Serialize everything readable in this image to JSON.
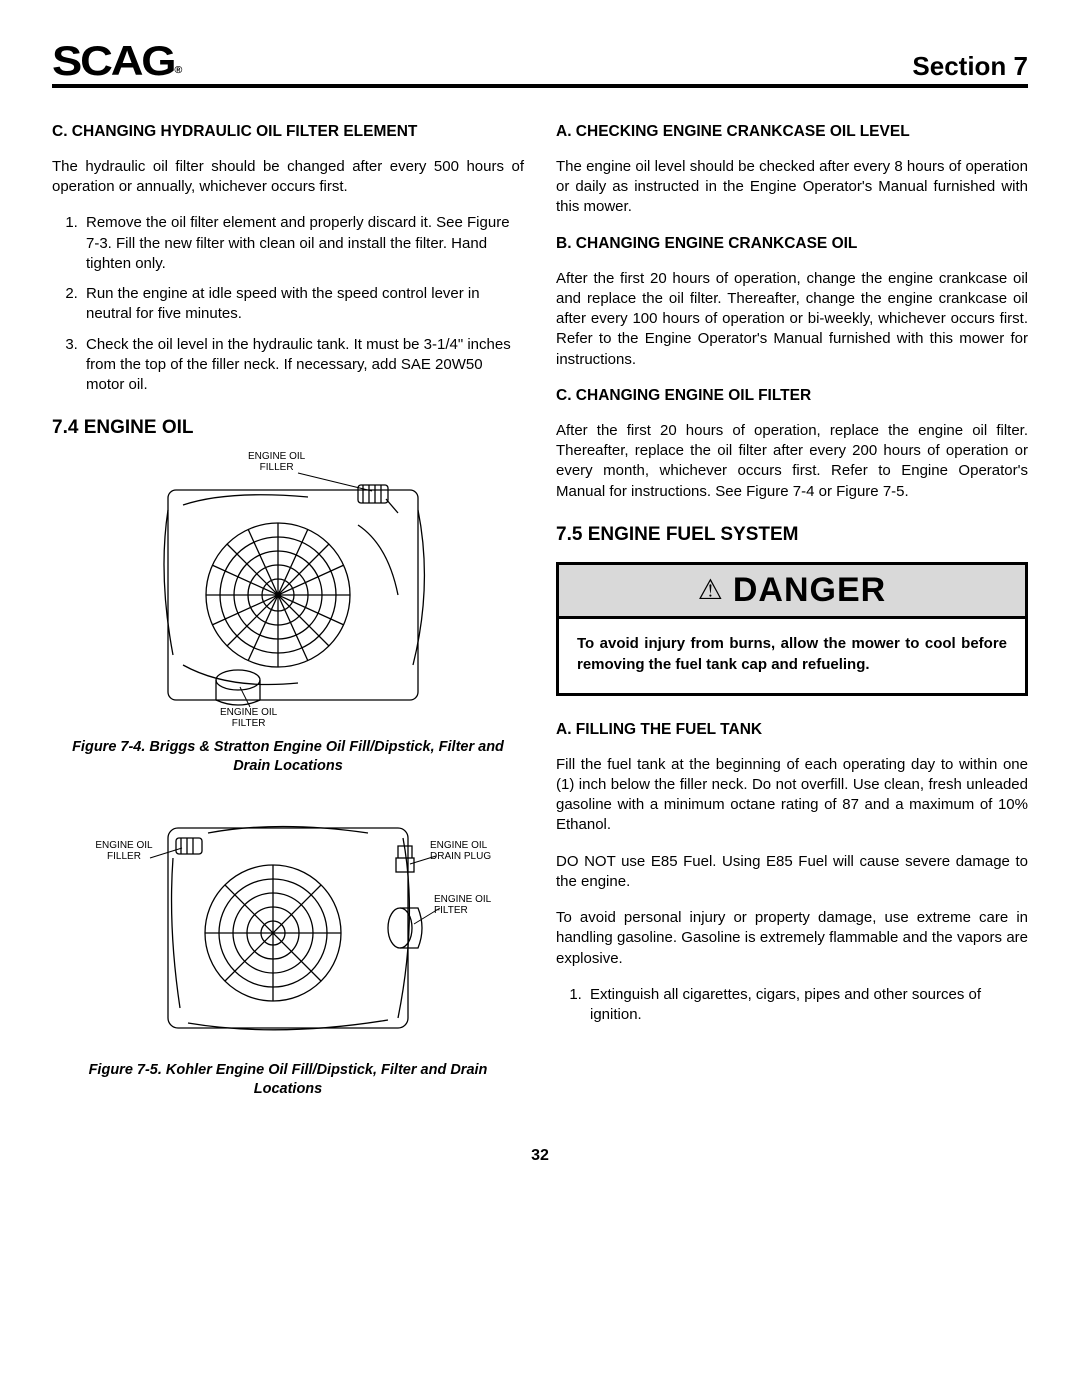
{
  "header": {
    "brand": "SCAG",
    "section": "Section 7"
  },
  "left": {
    "c_heading": "C. CHANGING HYDRAULIC OIL FILTER ELEMENT",
    "c_intro": "The hydraulic oil filter should be changed after every 500 hours of operation or annually, whichever occurs first.",
    "c_steps": [
      "Remove the oil filter element and properly discard it. See Figure 7-3. Fill the new filter with clean oil and install the filter. Hand tighten only.",
      "Run the engine at idle speed with the speed control lever in neutral for five minutes.",
      "Check the oil level in the hydraulic tank. It must be 3-1/4\" inches from the top of the filler neck. If necessary, add SAE 20W50 motor oil."
    ],
    "sec74": "7.4  ENGINE OIL",
    "fig74": {
      "label_filler": "ENGINE OIL\nFILLER",
      "label_filter": "ENGINE OIL\nFILTER",
      "caption": "Figure 7-4. Briggs & Stratton Engine Oil Fill/Dipstick, Filter and Drain Locations"
    },
    "fig75": {
      "label_filler": "ENGINE OIL\nFILLER",
      "label_drain": "ENGINE OIL\nDRAIN PLUG",
      "label_filter": "ENGINE OIL\nFILTER",
      "caption": "Figure 7-5. Kohler Engine Oil Fill/Dipstick, Filter and Drain Locations"
    }
  },
  "right": {
    "a_heading": "A. CHECKING ENGINE CRANKCASE OIL LEVEL",
    "a_body": "The engine oil level should be checked after every 8 hours of operation or daily as instructed in the Engine Operator's Manual furnished with this mower.",
    "b_heading": "B. CHANGING ENGINE CRANKCASE OIL",
    "b_body": "After the first 20 hours of operation, change the engine crankcase oil and replace the oil filter. Thereafter, change the engine crankcase oil after every 100 hours of operation or bi-weekly, whichever occurs first. Refer to the Engine Operator's Manual furnished with this mower for instructions.",
    "c_heading": "C. CHANGING ENGINE OIL FILTER",
    "c_body": "After the first 20 hours of operation, replace the engine oil filter. Thereafter, replace the oil filter after every 200 hours of operation or every month, whichever occurs first. Refer to Engine Operator's Manual for instructions. See Figure 7-4 or Figure 7-5.",
    "sec75": "7.5 ENGINE FUEL SYSTEM",
    "danger_word": "DANGER",
    "danger_body": "To avoid injury from burns, allow the mower to cool before removing the fuel tank cap and refueling.",
    "fill_heading": "A. FILLING THE FUEL TANK",
    "fill_p1": "Fill the fuel tank at the beginning of each operating day to within one (1) inch below the filler neck. Do not overfill. Use clean, fresh unleaded gasoline with a minimum octane rating of 87 and a maximum of 10% Ethanol.",
    "fill_p2": "DO NOT use E85 Fuel. Using E85 Fuel will cause severe damage to the engine.",
    "fill_p3": "To avoid personal injury or property damage, use extreme care in handling gasoline. Gasoline is extremely flammable and the vapors are explosive.",
    "fill_steps": [
      "Extinguish all cigarettes, cigars, pipes and other sources of ignition."
    ]
  },
  "page_number": "32"
}
